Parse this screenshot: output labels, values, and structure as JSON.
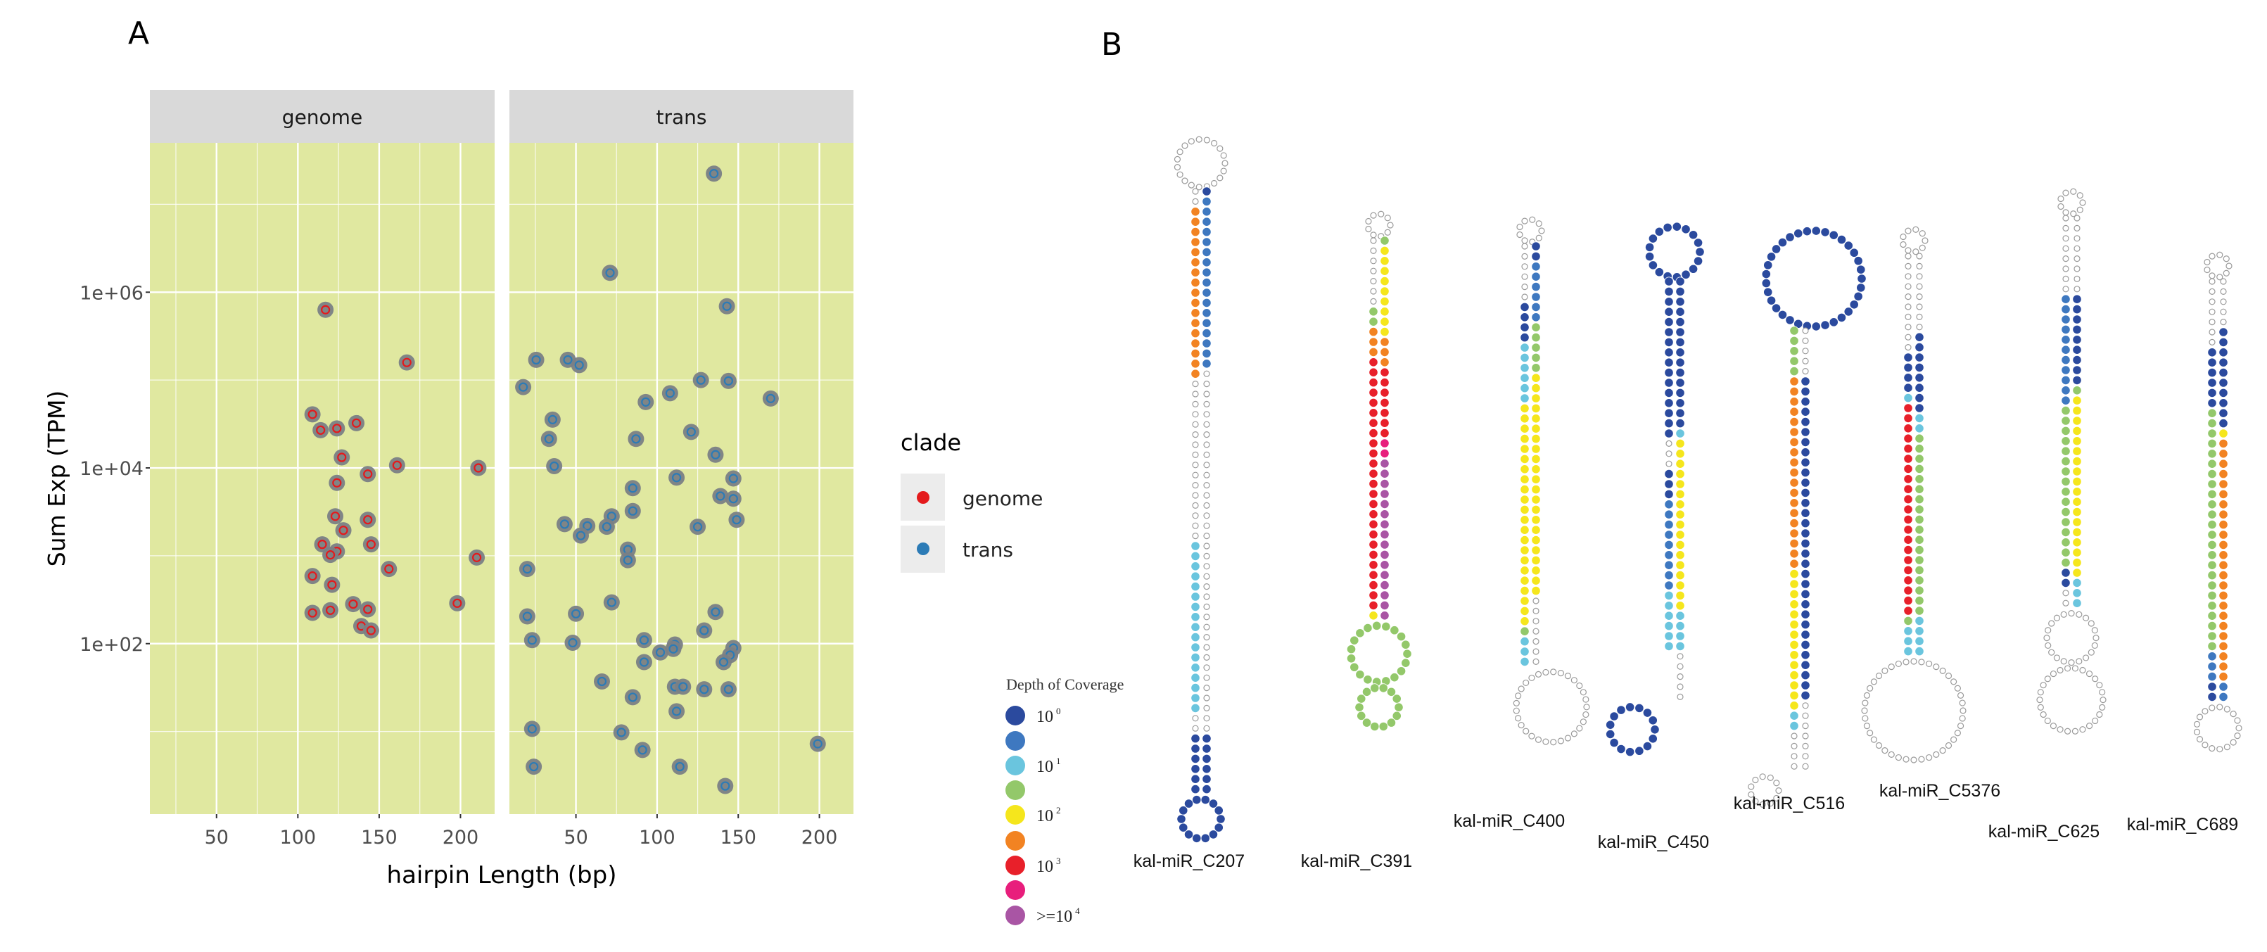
{
  "chart_data": {
    "type": "scatter",
    "panel_label": "A",
    "facets": [
      "genome",
      "trans"
    ],
    "xlabel": "hairpin Length (bp)",
    "ylabel": "Sum Exp (TPM)",
    "y_scale": "log10",
    "xlim": [
      9,
      221
    ],
    "ylim_log10": [
      0.06,
      7.7
    ],
    "x_ticks": [
      50,
      100,
      150,
      200
    ],
    "x_tick_labels": [
      "50",
      "100",
      "150",
      "200"
    ],
    "y_ticks_log10": [
      2,
      4,
      6
    ],
    "y_tick_labels": [
      "1e+02",
      "1e+04",
      "1e+06"
    ],
    "grid": true,
    "legend": {
      "title": "clade",
      "placement": "right",
      "entries": [
        "genome",
        "trans"
      ]
    },
    "colors": {
      "genome": "#e41a1c",
      "trans": "#2c7bb6",
      "point_fill": "#7a7f85",
      "panel_bg": "#e0e8a0",
      "strip_bg": "#d9d9d9"
    },
    "series": [
      {
        "name": "genome",
        "points": [
          [
            117,
            5.8
          ],
          [
            167,
            5.2
          ],
          [
            109,
            4.61
          ],
          [
            114,
            4.43
          ],
          [
            124,
            4.45
          ],
          [
            136,
            4.51
          ],
          [
            127,
            4.12
          ],
          [
            161,
            4.03
          ],
          [
            211,
            4.0
          ],
          [
            143,
            3.93
          ],
          [
            124,
            3.83
          ],
          [
            123,
            3.45
          ],
          [
            143,
            3.41
          ],
          [
            128,
            3.29
          ],
          [
            115,
            3.13
          ],
          [
            124,
            3.05
          ],
          [
            120,
            3.01
          ],
          [
            145,
            3.13
          ],
          [
            210,
            2.98
          ],
          [
            156,
            2.85
          ],
          [
            109,
            2.77
          ],
          [
            121,
            2.67
          ],
          [
            198,
            2.46
          ],
          [
            134,
            2.45
          ],
          [
            143,
            2.39
          ],
          [
            109,
            2.35
          ],
          [
            120,
            2.38
          ],
          [
            139,
            2.2
          ],
          [
            145,
            2.15
          ]
        ]
      },
      {
        "name": "trans",
        "points": [
          [
            135,
            7.35
          ],
          [
            71,
            6.22
          ],
          [
            143,
            5.84
          ],
          [
            25.5,
            5.23
          ],
          [
            45,
            5.23
          ],
          [
            52,
            5.17
          ],
          [
            17.5,
            4.92
          ],
          [
            127,
            5.0
          ],
          [
            144,
            4.99
          ],
          [
            108,
            4.85
          ],
          [
            93,
            4.75
          ],
          [
            170,
            4.79
          ],
          [
            35.6,
            4.55
          ],
          [
            33.4,
            4.33
          ],
          [
            87,
            4.33
          ],
          [
            121,
            4.41
          ],
          [
            136,
            4.15
          ],
          [
            36.6,
            4.02
          ],
          [
            112,
            3.89
          ],
          [
            147,
            3.88
          ],
          [
            85,
            3.77
          ],
          [
            139,
            3.68
          ],
          [
            147,
            3.65
          ],
          [
            85,
            3.51
          ],
          [
            72,
            3.45
          ],
          [
            149,
            3.41
          ],
          [
            43,
            3.36
          ],
          [
            57,
            3.34
          ],
          [
            69,
            3.33
          ],
          [
            125,
            3.33
          ],
          [
            53,
            3.23
          ],
          [
            82,
            3.07
          ],
          [
            82,
            2.95
          ],
          [
            20,
            2.85
          ],
          [
            72,
            2.47
          ],
          [
            20,
            2.31
          ],
          [
            50,
            2.34
          ],
          [
            136,
            2.36
          ],
          [
            129,
            2.15
          ],
          [
            23,
            2.04
          ],
          [
            48,
            2.01
          ],
          [
            92,
            2.04
          ],
          [
            111,
            1.99
          ],
          [
            102,
            1.9
          ],
          [
            110,
            1.94
          ],
          [
            147,
            1.95
          ],
          [
            145,
            1.87
          ],
          [
            141,
            1.79
          ],
          [
            92,
            1.79
          ],
          [
            66,
            1.57
          ],
          [
            111,
            1.51
          ],
          [
            116,
            1.51
          ],
          [
            129,
            1.48
          ],
          [
            144,
            1.48
          ],
          [
            85,
            1.39
          ],
          [
            112,
            1.23
          ],
          [
            23,
            1.03
          ],
          [
            78,
            0.99
          ],
          [
            199,
            0.86
          ],
          [
            91,
            0.79
          ],
          [
            24,
            0.6
          ],
          [
            114,
            0.6
          ],
          [
            142,
            0.38
          ]
        ]
      }
    ]
  },
  "panel_b": {
    "panel_label": "B",
    "legend": {
      "title": "Depth of Coverage",
      "levels": [
        {
          "color": "#2b4a9e",
          "base": "10",
          "exp": "0"
        },
        {
          "color": "#3e78c0",
          "base": "",
          "exp": ""
        },
        {
          "color": "#6ac5de",
          "base": "10",
          "exp": "1"
        },
        {
          "color": "#93c86a",
          "base": "",
          "exp": ""
        },
        {
          "color": "#f5e61c",
          "base": "10",
          "exp": "2"
        },
        {
          "color": "#f28322",
          "base": "",
          "exp": ""
        },
        {
          "color": "#e8202a",
          "base": "10",
          "exp": "3"
        },
        {
          "color": "#e81e7c",
          "base": "",
          "exp": ""
        },
        {
          "color": "#a955a4",
          "base": ">=10",
          "exp": "4"
        }
      ]
    },
    "hairpins": [
      {
        "name": "kal-miR_C207",
        "left": [
          [
            -1,
            2
          ],
          [
            5,
            17
          ],
          [
            -1,
            16
          ],
          [
            2,
            17
          ],
          [
            -1,
            2
          ],
          [
            0,
            6
          ]
        ],
        "right": [
          [
            0,
            1
          ],
          [
            1,
            17
          ],
          [
            -1,
            36
          ],
          [
            0,
            6
          ]
        ],
        "top_loop": -1,
        "bottom_loops": [
          [
            0,
            28
          ]
        ]
      },
      {
        "name": "kal-miR_C391",
        "left": [
          [
            -1,
            7
          ],
          [
            3,
            2
          ],
          [
            5,
            3
          ],
          [
            6,
            25
          ],
          [
            4,
            1
          ]
        ],
        "right": [
          [
            3,
            1
          ],
          [
            4,
            9
          ],
          [
            5,
            3
          ],
          [
            6,
            7
          ],
          [
            7,
            2
          ],
          [
            8,
            16
          ]
        ],
        "top_loop": -1,
        "bottom_loops": [
          [
            3,
            40
          ],
          [
            3,
            28
          ]
        ]
      },
      {
        "name": "kal-miR_C400",
        "left": [
          [
            -1,
            6
          ],
          [
            0,
            4
          ],
          [
            2,
            6
          ],
          [
            4,
            22
          ],
          [
            3,
            1
          ],
          [
            2,
            3
          ]
        ],
        "right": [
          [
            0,
            2
          ],
          [
            1,
            6
          ],
          [
            3,
            5
          ],
          [
            4,
            22
          ],
          [
            -1,
            7
          ]
        ],
        "top_loop": -1,
        "bottom_loops": [
          [
            -1,
            50
          ]
        ]
      },
      {
        "name": "kal-miR_C450",
        "left": [
          [
            0,
            16
          ],
          [
            -1,
            3
          ],
          [
            0,
            3
          ],
          [
            1,
            9
          ],
          [
            2,
            6
          ]
        ],
        "right": [
          [
            0,
            15
          ],
          [
            2,
            1
          ],
          [
            4,
            17
          ],
          [
            2,
            4
          ],
          [
            -1,
            5
          ]
        ],
        "top_loop": 0,
        "bottom_loops": [
          [
            0,
            32
          ]
        ]
      },
      {
        "name": "kal-miR_C516",
        "left": [
          [
            3,
            5
          ],
          [
            5,
            19
          ],
          [
            4,
            14
          ],
          [
            2,
            2
          ],
          [
            -1,
            4
          ]
        ],
        "right": [
          [
            -1,
            5
          ],
          [
            0,
            32
          ],
          [
            -1,
            7
          ]
        ],
        "top_loop": 0,
        "bottom_loops": [
          [
            -1,
            20
          ]
        ]
      },
      {
        "name": "kal-miR_C5376",
        "left": [
          [
            -1,
            10
          ],
          [
            0,
            4
          ],
          [
            2,
            1
          ],
          [
            6,
            21
          ],
          [
            3,
            1
          ],
          [
            2,
            3
          ]
        ],
        "right": [
          [
            -1,
            8
          ],
          [
            0,
            8
          ],
          [
            2,
            2
          ],
          [
            3,
            18
          ],
          [
            2,
            4
          ]
        ],
        "top_loop": -1,
        "bottom_loops": [
          [
            -1,
            70
          ]
        ]
      },
      {
        "name": "kal-miR_C625",
        "left": [
          [
            -1,
            8
          ],
          [
            1,
            11
          ],
          [
            3,
            16
          ],
          [
            0,
            2
          ],
          [
            -1,
            2
          ]
        ],
        "right": [
          [
            -1,
            8
          ],
          [
            0,
            9
          ],
          [
            3,
            1
          ],
          [
            4,
            18
          ],
          [
            2,
            3
          ]
        ],
        "top_loop": -1,
        "bottom_loops": [
          [
            -1,
            35
          ],
          [
            -1,
            45
          ]
        ]
      },
      {
        "name": "kal-miR_C689",
        "left": [
          [
            -1,
            7
          ],
          [
            0,
            6
          ],
          [
            3,
            24
          ],
          [
            1,
            3
          ],
          [
            0,
            2
          ]
        ],
        "right": [
          [
            -1,
            5
          ],
          [
            0,
            10
          ],
          [
            4,
            1
          ],
          [
            5,
            24
          ],
          [
            1,
            2
          ]
        ],
        "top_loop": -1,
        "bottom_loops": [
          [
            -1,
            30
          ]
        ]
      }
    ]
  }
}
